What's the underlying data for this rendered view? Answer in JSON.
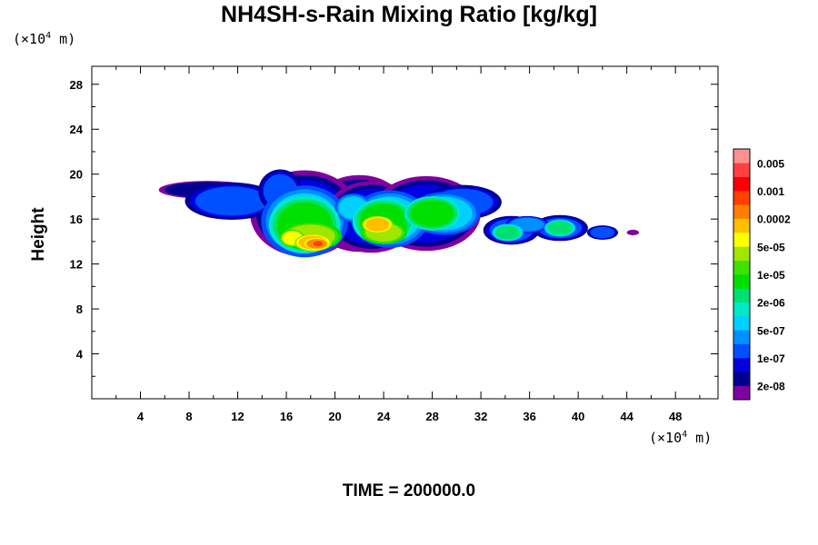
{
  "chart_data": {
    "type": "heatmap",
    "title": "NH4SH-s-Rain Mixing Ratio [kg/kg]",
    "ylabel": "Height",
    "x_unit": {
      "prefix": "(×10",
      "exponent": "4",
      "suffix": " m)"
    },
    "y_unit": {
      "prefix": "(×10",
      "exponent": "4",
      "suffix": " m)"
    },
    "xlim": [
      0,
      51.5
    ],
    "ylim": [
      0,
      29.6
    ],
    "x_ticks": [
      "4",
      "8",
      "12",
      "16",
      "20",
      "24",
      "28",
      "32",
      "36",
      "40",
      "44",
      "48"
    ],
    "y_ticks": [
      "4",
      "8",
      "12",
      "16",
      "20",
      "24",
      "28"
    ],
    "minor_ticks": "every 2 units",
    "colorbar": {
      "colors": [
        "#8000a0",
        "#000090",
        "#0000e0",
        "#0050ff",
        "#0090ff",
        "#00d0ff",
        "#00e8c8",
        "#00e070",
        "#00e000",
        "#40e000",
        "#a0e600",
        "#ffff00",
        "#ffc000",
        "#ff8000",
        "#ff4000",
        "#ff0000",
        "#ff4040",
        "#ff9090"
      ],
      "labels": [
        "2e-08",
        "1e-07",
        "5e-07",
        "2e-06",
        "1e-05",
        "5e-05",
        "0.0002",
        "0.001",
        "0.005"
      ]
    },
    "features": [
      {
        "x": 9.5,
        "y": 18.6,
        "rx": 3.5,
        "ry": 0.7,
        "level": 1
      },
      {
        "x": 11.5,
        "y": 17.6,
        "rx": 3,
        "ry": 1.3,
        "level": 3
      },
      {
        "x": 15.5,
        "y": 18.5,
        "rx": 1.4,
        "ry": 1.5,
        "level": 3
      },
      {
        "x": 17.5,
        "y": 16.5,
        "rx": 3.5,
        "ry": 3,
        "level": 2
      },
      {
        "x": 22,
        "y": 16.5,
        "rx": 3.5,
        "ry": 3,
        "level": 1
      },
      {
        "x": 23,
        "y": 16.2,
        "rx": 3,
        "ry": 2.5,
        "level": 2
      },
      {
        "x": 27.5,
        "y": 16.5,
        "rx": 3.5,
        "ry": 2.6,
        "level": 2
      },
      {
        "x": 30.5,
        "y": 17.5,
        "rx": 2.5,
        "ry": 1.2,
        "level": 3
      },
      {
        "x": 17.5,
        "y": 15.8,
        "rx": 2.8,
        "ry": 2.5,
        "level": 5
      },
      {
        "x": 24.5,
        "y": 16,
        "rx": 2.5,
        "ry": 2,
        "level": 5
      },
      {
        "x": 29,
        "y": 16.5,
        "rx": 2.3,
        "ry": 1.5,
        "level": 5
      },
      {
        "x": 21.5,
        "y": 17,
        "rx": 1.2,
        "ry": 1,
        "level": 5
      },
      {
        "x": 17.5,
        "y": 15.5,
        "rx": 2.3,
        "ry": 2,
        "level": 8
      },
      {
        "x": 24,
        "y": 15.8,
        "rx": 2,
        "ry": 1.6,
        "level": 8
      },
      {
        "x": 28,
        "y": 16.5,
        "rx": 1.8,
        "ry": 1.2,
        "level": 8
      },
      {
        "x": 18,
        "y": 14.5,
        "rx": 2,
        "ry": 1,
        "level": 10
      },
      {
        "x": 24,
        "y": 14.8,
        "rx": 1.5,
        "ry": 0.8,
        "level": 10
      },
      {
        "x": 16.5,
        "y": 14.3,
        "rx": 0.8,
        "ry": 0.6,
        "level": 11
      },
      {
        "x": 18.2,
        "y": 13.9,
        "rx": 1.2,
        "ry": 0.6,
        "level": 12
      },
      {
        "x": 18.5,
        "y": 13.8,
        "rx": 0.8,
        "ry": 0.4,
        "level": 13
      },
      {
        "x": 18.6,
        "y": 13.8,
        "rx": 0.4,
        "ry": 0.25,
        "level": 14
      },
      {
        "x": 23.5,
        "y": 15.5,
        "rx": 1,
        "ry": 0.6,
        "level": 12
      },
      {
        "x": 22,
        "y": 18.8,
        "rx": 2,
        "ry": 0.7,
        "level": 1
      },
      {
        "x": 34.5,
        "y": 15,
        "rx": 1.8,
        "ry": 1,
        "level": 3
      },
      {
        "x": 35.8,
        "y": 15.5,
        "rx": 1.4,
        "ry": 0.6,
        "level": 4
      },
      {
        "x": 34.2,
        "y": 14.8,
        "rx": 1,
        "ry": 0.6,
        "level": 7
      },
      {
        "x": 38.5,
        "y": 15.2,
        "rx": 1.8,
        "ry": 0.9,
        "level": 3
      },
      {
        "x": 38.5,
        "y": 15.2,
        "rx": 1,
        "ry": 0.6,
        "level": 7
      },
      {
        "x": 42,
        "y": 14.8,
        "rx": 1,
        "ry": 0.5,
        "level": 3
      },
      {
        "x": 44.5,
        "y": 14.8,
        "rx": 0.5,
        "ry": 0.25,
        "level": 0
      }
    ]
  },
  "time_label": "TIME = 200000.0"
}
